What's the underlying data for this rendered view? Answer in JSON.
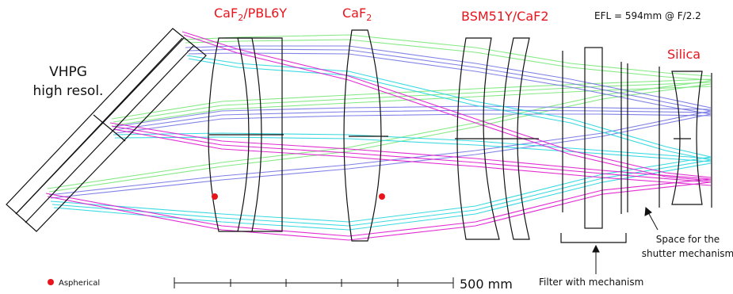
{
  "labels": {
    "vhpg_line1": "VHPG",
    "vhpg_line2": "high resol.",
    "lens1_main": "CaF",
    "lens1_sub": "2",
    "lens1_rest": "/PBL6Y",
    "lens2_main": "CaF",
    "lens2_sub": "2",
    "lens3": "BSM51Y/CaF2",
    "efl": "EFL = 594mm @ F/2.2",
    "silica": "Silica",
    "filter": "Filter with mechanism",
    "shutter_line1": "Space for the",
    "shutter_line2": "shutter mechanism",
    "aspherical": "Aspherical",
    "scale": "500 mm"
  },
  "colors": {
    "label_red": "#e8141c",
    "ray_green": "#7ee87e",
    "ray_blue": "#7b7be6",
    "ray_cyan": "#2fd8e0",
    "ray_magenta": "#e020d0",
    "aspherical_dot": "#e8141c"
  },
  "icons": {
    "aspherical_marker": "red-dot-icon",
    "arrow": "arrow-icon"
  }
}
